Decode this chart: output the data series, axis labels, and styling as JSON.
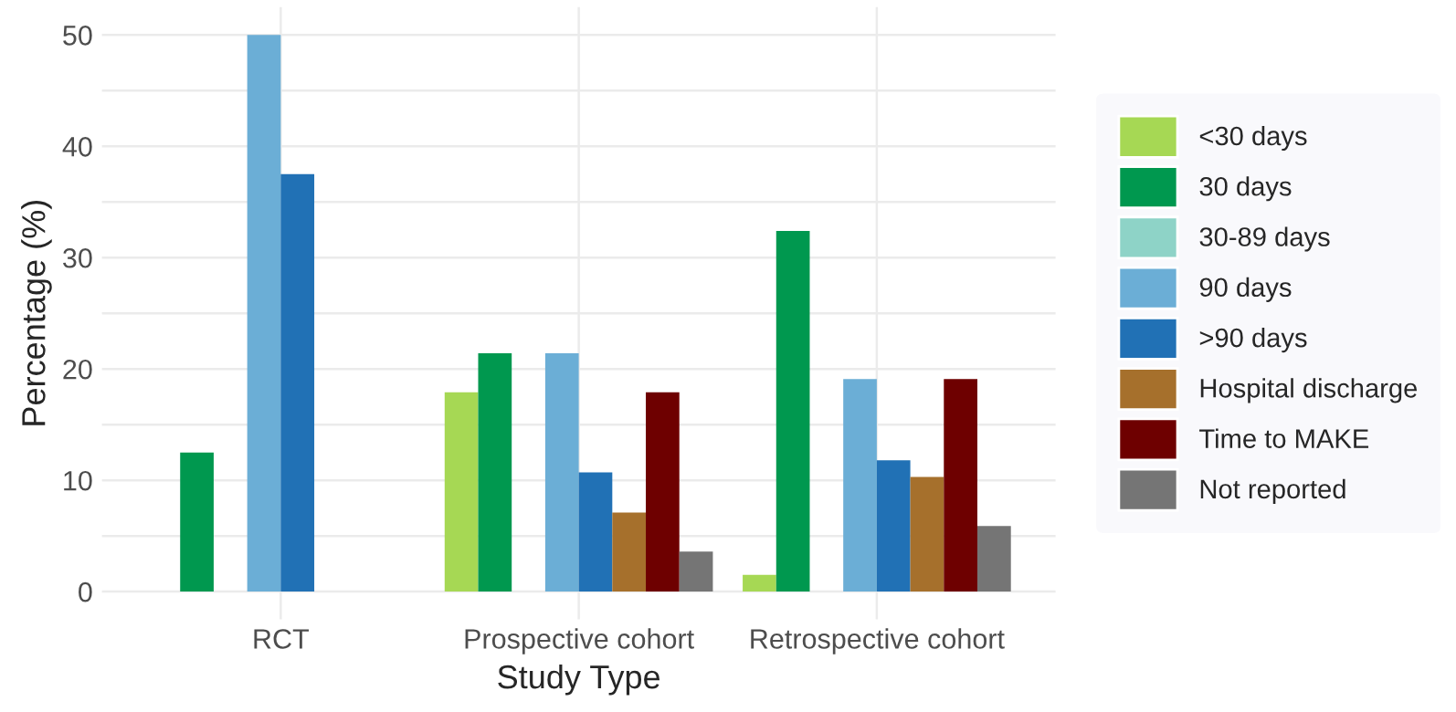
{
  "chart_data": {
    "type": "bar",
    "xlabel": "Study Type",
    "ylabel": "Percentage (%)",
    "categories": [
      "RCT",
      "Prospective cohort",
      "Retrospective cohort"
    ],
    "series": [
      {
        "name": "<30 days",
        "color": "#a6d854",
        "values": [
          null,
          17.9,
          1.5
        ]
      },
      {
        "name": "30 days",
        "color": "#00984f",
        "values": [
          12.5,
          21.4,
          32.4
        ]
      },
      {
        "name": "30-89 days",
        "color": "#8ed3c7",
        "values": [
          null,
          null,
          null
        ]
      },
      {
        "name": "90 days",
        "color": "#6baed6",
        "values": [
          50,
          21.4,
          19.1
        ]
      },
      {
        "name": ">90 days",
        "color": "#2171b5",
        "values": [
          37.5,
          10.7,
          11.8
        ]
      },
      {
        "name": "Hospital discharge",
        "color": "#a6702c",
        "values": [
          null,
          7.1,
          10.3
        ]
      },
      {
        "name": "Time to MAKE",
        "color": "#6e0000",
        "values": [
          null,
          17.9,
          19.1
        ]
      },
      {
        "name": "Not reported",
        "color": "#757575",
        "values": [
          null,
          3.6,
          5.9
        ]
      }
    ],
    "ylim": [
      -2.5,
      52.5
    ],
    "yticks": [
      0,
      10,
      20,
      30,
      40,
      50
    ],
    "grid": true,
    "legend": "right"
  }
}
